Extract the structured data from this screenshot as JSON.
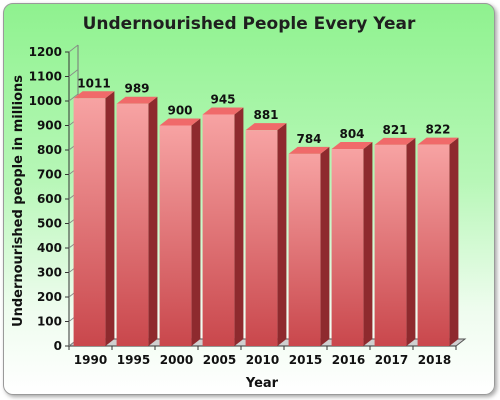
{
  "chart_data": {
    "type": "bar",
    "title": "Undernourished People Every Year",
    "xlabel": "Year",
    "ylabel": "Undernourished people in millions",
    "categories": [
      "1990",
      "1995",
      "2000",
      "2005",
      "2010",
      "2015",
      "2016",
      "2017",
      "2018"
    ],
    "values": [
      1011,
      989,
      900,
      945,
      881,
      784,
      804,
      821,
      822
    ],
    "data_labels": [
      "1011",
      "989",
      "900",
      "945",
      "881",
      "784",
      "804",
      "821",
      "822"
    ],
    "ylim": [
      0,
      1200
    ],
    "yticks": [
      "0",
      "100",
      "200",
      "300",
      "400",
      "500",
      "600",
      "700",
      "800",
      "900",
      "1000",
      "1100",
      "1200"
    ],
    "grid": false,
    "legend": "none",
    "style": "3d-bars",
    "colors": {
      "bar_front_top": "#f7a3a3",
      "bar_front_bottom": "#c9474c",
      "bar_side": "#8e2a2e",
      "bar_top": "#f06a6a",
      "background_top": "#8ff28f",
      "background_bottom": "#ffffff"
    }
  }
}
